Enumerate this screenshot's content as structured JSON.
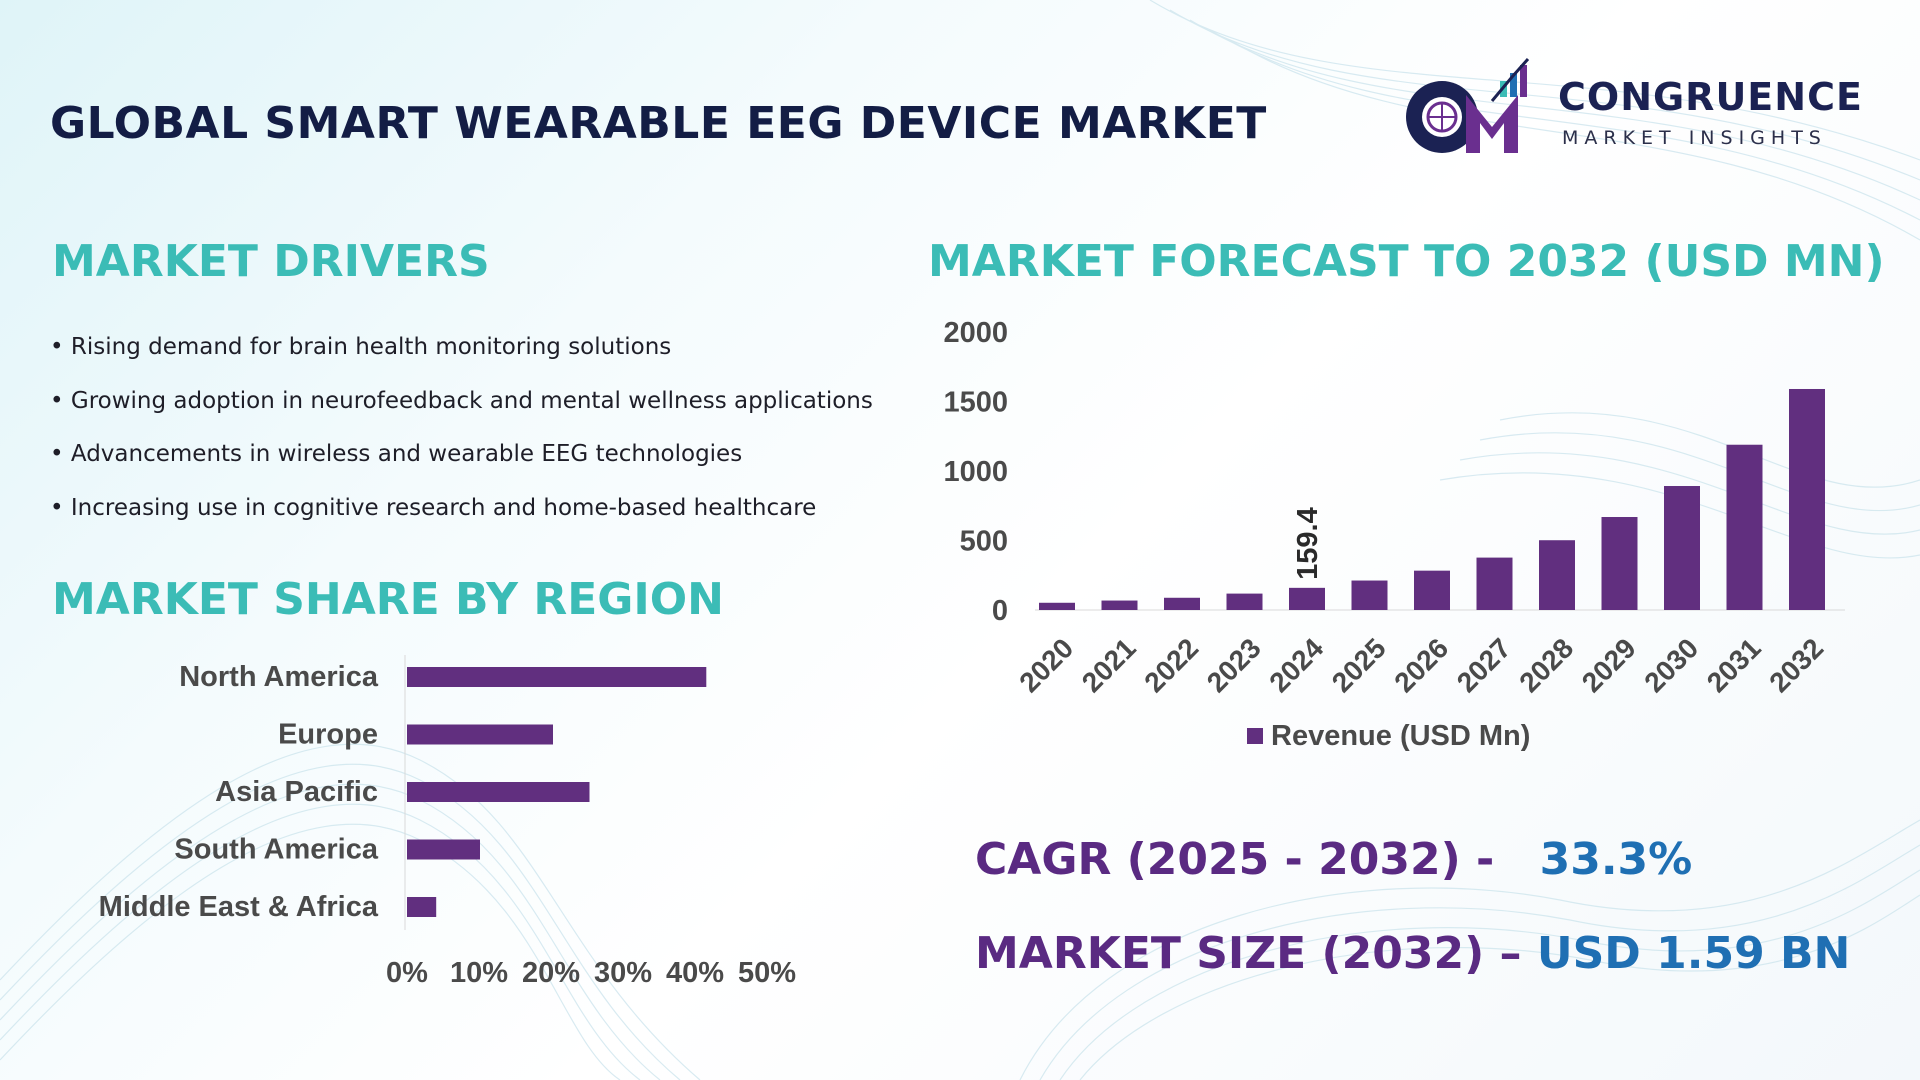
{
  "header": {
    "title": "GLOBAL SMART WEARABLE EEG DEVICE MARKET"
  },
  "logo": {
    "name": "CONGRUENCE",
    "subtitle": "MARKET INSIGHTS",
    "monogram": "CM"
  },
  "drivers": {
    "title": "MARKET DRIVERS",
    "items": [
      "• Rising demand for brain health monitoring solutions",
      "• Growing adoption in neurofeedback and mental wellness applications",
      "• Advancements in wireless and wearable EEG technologies",
      "• Increasing use in cognitive research and home-based healthcare"
    ]
  },
  "region": {
    "title": "MARKET SHARE BY REGION"
  },
  "forecast": {
    "title": "MARKET FORECAST TO 2032 (USD MN)"
  },
  "kpis": {
    "cagr_label": "CAGR (2025 - 2032) -",
    "cagr_value": "33.3%",
    "size_label": "MARKET SIZE (2032) –",
    "size_value": "USD 1.59 BN"
  },
  "colors": {
    "bar": "#612f7f",
    "teal": "#3bbcb6",
    "navy": "#131d45",
    "purple_text": "#5a2a82",
    "blue_text": "#1f6fb3",
    "axis_text": "#4a4a4a"
  },
  "chart_data": [
    {
      "type": "bar",
      "orientation": "horizontal",
      "categories": [
        "North America",
        "Europe",
        "Asia Pacific",
        "South America",
        "Middle East & Africa"
      ],
      "values": [
        41,
        20,
        25,
        10,
        4
      ],
      "xlim": [
        0,
        50
      ],
      "tick_labels": [
        "0%",
        "10%",
        "20%",
        "30%",
        "40%",
        "50%"
      ],
      "grid": false,
      "legend": "none"
    },
    {
      "type": "bar",
      "categories": [
        "2020",
        "2021",
        "2022",
        "2023",
        "2024",
        "2025",
        "2026",
        "2027",
        "2028",
        "2029",
        "2030",
        "2031",
        "2032"
      ],
      "values": [
        52,
        68,
        88,
        118,
        159.4,
        212,
        283,
        377,
        502,
        669,
        892,
        1189,
        1590
      ],
      "data_labels": [
        {
          "category": "2024",
          "text": "159.4"
        }
      ],
      "ylim": [
        0,
        2000
      ],
      "yticks": [
        "0",
        "500",
        "1000",
        "1500",
        "2000"
      ],
      "legend": {
        "label": "Revenue (USD Mn)",
        "position": "bottom"
      },
      "grid": false
    }
  ]
}
